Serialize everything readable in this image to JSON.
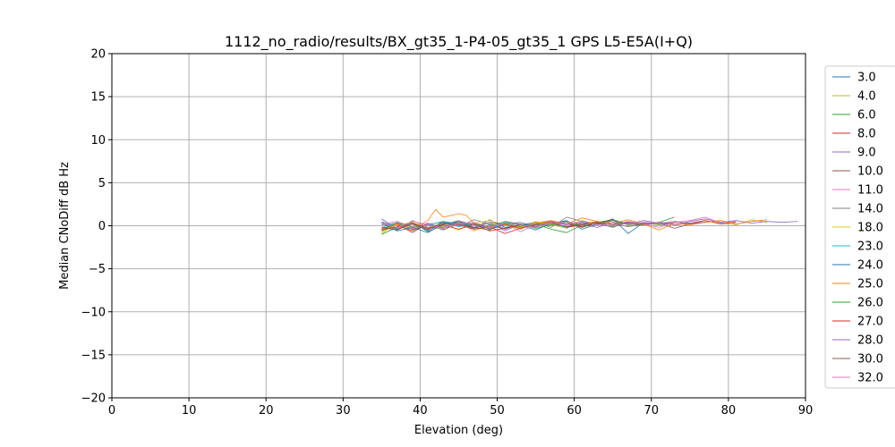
{
  "chart_data": {
    "type": "line",
    "title": "1112_no_radio/results/BX_gt35_1-P4-05_gt35_1 GPS L5-E5A(I+Q)",
    "xlabel": "Elevation (deg)",
    "ylabel": "Median CNoDiff dB Hz",
    "xlim": [
      0,
      90
    ],
    "ylim": [
      -20,
      20
    ],
    "xticks": [
      "0",
      "10",
      "20",
      "30",
      "40",
      "50",
      "60",
      "70",
      "80",
      "90"
    ],
    "yticks": [
      "−20",
      "−15",
      "−10",
      "−5",
      "0",
      "5",
      "10",
      "15",
      "20"
    ],
    "grid": true,
    "legend_position": "right-outside",
    "series": [
      {
        "name": "3.0",
        "color": "#1f77b4",
        "x": [
          35,
          37,
          39,
          41,
          43,
          45,
          47,
          49,
          51,
          53,
          55,
          57,
          59,
          61,
          63,
          65,
          67,
          69,
          71,
          73
        ],
        "y": [
          0.8,
          -0.4,
          0.3,
          -0.6,
          0.5,
          0.2,
          -0.3,
          0.7,
          -0.2,
          0.1,
          -0.5,
          0.3,
          0.6,
          -0.4,
          0.2,
          0.8,
          -0.9,
          0.4,
          0.1,
          0.3
        ]
      },
      {
        "name": "4.0",
        "color": "#bcbd22",
        "x": [
          35,
          37,
          39,
          41,
          43,
          45,
          47,
          49,
          51,
          53,
          55,
          57,
          59,
          61,
          63,
          65,
          67,
          69,
          71,
          73,
          75,
          77,
          79,
          81,
          83,
          85
        ],
        "y": [
          -0.9,
          0.3,
          -0.5,
          0.2,
          -0.1,
          0.4,
          -0.6,
          0.1,
          0.3,
          -0.2,
          0.5,
          0.1,
          -0.3,
          0.6,
          0.2,
          -0.1,
          0.4,
          0.3,
          0.1,
          0.5,
          0.2,
          0.6,
          0.3,
          0.1,
          0.7,
          0.4
        ]
      },
      {
        "name": "6.0",
        "color": "#2ca02c",
        "x": [
          35,
          37,
          39,
          41,
          43,
          45,
          47,
          49,
          51,
          53,
          55,
          57,
          59,
          61,
          63,
          65,
          67,
          69,
          71,
          73
        ],
        "y": [
          -1.0,
          -0.2,
          0.4,
          -0.7,
          0.1,
          0.6,
          -0.2,
          -0.5,
          0.3,
          -0.1,
          0.2,
          -0.4,
          -0.8,
          0.1,
          0.3,
          -0.2,
          0.5,
          0.2,
          0.4,
          1.0
        ]
      },
      {
        "name": "8.0",
        "color": "#d62728",
        "x": [
          35,
          37,
          39,
          41,
          43,
          45,
          47,
          49,
          51,
          53,
          55,
          57,
          59,
          61,
          63,
          65,
          67,
          69,
          71,
          73,
          75,
          77,
          79,
          81
        ],
        "y": [
          -0.5,
          0.2,
          -0.8,
          0.3,
          -0.3,
          0.1,
          -0.4,
          -0.1,
          -0.9,
          -0.3,
          0.2,
          0.4,
          -0.2,
          0.1,
          0.5,
          0.3,
          -0.1,
          0.2,
          0.4,
          0.1,
          0.3,
          0.6,
          0.2,
          0.4
        ]
      },
      {
        "name": "9.0",
        "color": "#9467bd",
        "x": [
          35,
          37,
          39,
          41,
          43,
          45,
          47,
          49,
          51,
          53,
          55,
          57,
          59,
          61,
          63,
          65,
          67,
          69,
          71,
          73,
          75,
          77,
          79,
          81,
          83,
          85,
          87,
          89
        ],
        "y": [
          0.5,
          -0.3,
          0.2,
          -0.5,
          0.1,
          0.3,
          -0.2,
          0.4,
          -0.6,
          0.2,
          -0.1,
          0.3,
          0.5,
          0.1,
          -0.2,
          0.4,
          0.2,
          0.6,
          0.3,
          0.1,
          0.5,
          0.8,
          0.4,
          0.6,
          0.3,
          0.5,
          0.4,
          0.5
        ]
      },
      {
        "name": "10.0",
        "color": "#8c564b",
        "x": [
          35,
          37,
          39,
          41,
          43,
          45,
          47,
          49,
          51,
          53,
          55,
          57,
          59,
          61,
          63,
          65,
          67,
          69,
          71,
          73,
          75,
          77,
          79
        ],
        "y": [
          -0.3,
          0.1,
          -0.6,
          0.2,
          0.4,
          -0.1,
          0.3,
          -0.4,
          0.1,
          -0.2,
          0.3,
          0.5,
          0.2,
          -0.1,
          0.4,
          0.7,
          0.2,
          0.1,
          0.3,
          -0.3,
          0.2,
          0.4,
          0.6
        ]
      },
      {
        "name": "11.0",
        "color": "#e377c2",
        "x": [
          35,
          37,
          39,
          41,
          43,
          45,
          47,
          49,
          51,
          53,
          55,
          57,
          59,
          61,
          63,
          65,
          67,
          69,
          71,
          73,
          75,
          77,
          79,
          81
        ],
        "y": [
          0.2,
          0.5,
          -0.1,
          0.3,
          -0.4,
          0.6,
          0.1,
          -0.2,
          0.3,
          -0.7,
          0.1,
          0.4,
          0.2,
          -0.1,
          0.3,
          0.1,
          0.5,
          0.2,
          -0.2,
          0.4,
          0.6,
          1.0,
          0.3,
          0.5
        ]
      },
      {
        "name": "14.0",
        "color": "#7f7f7f",
        "x": [
          35,
          37,
          39,
          41,
          43,
          45,
          47,
          49,
          51,
          53,
          55,
          57,
          59,
          61,
          63,
          65,
          67,
          69,
          71,
          73
        ],
        "y": [
          0.4,
          -0.5,
          0.6,
          -0.2,
          0.3,
          -0.1,
          0.7,
          0.2,
          -0.3,
          0.1,
          0.4,
          -0.2,
          1.0,
          0.5,
          0.1,
          0.3,
          -0.1,
          0.2,
          0.4,
          0.3
        ]
      },
      {
        "name": "18.0",
        "color": "#e8c51a",
        "x": [
          35,
          37,
          39,
          41,
          43,
          45,
          47,
          49,
          51,
          53,
          55,
          57,
          59,
          61,
          63,
          65,
          67,
          69
        ],
        "y": [
          -0.7,
          0.1,
          0.4,
          -0.3,
          0.2,
          -0.5,
          0.3,
          0.6,
          0.1,
          -0.2,
          0.4,
          0.2,
          -0.1,
          0.3,
          0.5,
          0.1,
          0.3,
          0.2
        ]
      },
      {
        "name": "23.0",
        "color": "#17becf",
        "x": [
          35,
          37,
          39,
          41,
          43,
          45,
          47,
          49,
          51,
          53,
          55
        ],
        "y": [
          -0.2,
          0.3,
          -0.4,
          0.1,
          0.5,
          -0.1,
          0.2,
          -0.3,
          0.4,
          0.1,
          0.2
        ]
      },
      {
        "name": "24.0",
        "color": "#1f77b4",
        "x": [
          35,
          37,
          39,
          41,
          43,
          45,
          47,
          49,
          51,
          53,
          55,
          57,
          59,
          61,
          63,
          65,
          67
        ],
        "y": [
          0.3,
          -0.6,
          -0.2,
          -0.8,
          0.2,
          0.5,
          -0.3,
          0.1,
          -0.4,
          0.2,
          -0.1,
          0.3,
          -0.2,
          0.4,
          0.1,
          0.6,
          0.2
        ]
      },
      {
        "name": "25.0",
        "color": "#ff7f0e",
        "x": [
          35,
          37,
          39,
          41,
          42,
          43,
          45,
          46,
          47,
          49,
          51,
          53,
          55,
          57,
          59,
          61,
          63,
          65,
          67,
          69,
          71,
          73,
          75,
          77,
          79,
          81,
          83,
          85
        ],
        "y": [
          -0.4,
          0.2,
          -0.3,
          0.6,
          1.9,
          1.0,
          1.4,
          1.2,
          0.3,
          -0.2,
          0.1,
          -0.4,
          0.3,
          0.6,
          0.2,
          0.9,
          0.5,
          0.3,
          0.7,
          0.2,
          -0.5,
          0.3,
          0.1,
          0.4,
          0.6,
          0.2,
          0.5,
          0.7
        ]
      },
      {
        "name": "26.0",
        "color": "#2ca02c",
        "x": [
          35,
          37,
          39,
          41,
          43,
          45,
          47,
          49,
          51,
          53,
          55,
          57,
          59,
          61,
          63,
          65,
          67,
          69,
          71
        ],
        "y": [
          -0.6,
          0.4,
          -0.2,
          0.1,
          -0.5,
          0.3,
          0.2,
          -0.1,
          0.5,
          0.2,
          -0.3,
          0.1,
          0.4,
          -0.2,
          0.3,
          0.6,
          0.1,
          0.3,
          0.2
        ]
      },
      {
        "name": "27.0",
        "color": "#d62728",
        "x": [
          35,
          37,
          39,
          41,
          43,
          45,
          47,
          49,
          51,
          53,
          55,
          57,
          59,
          61,
          63,
          65,
          67
        ],
        "y": [
          -0.2,
          -0.5,
          0.3,
          -0.3,
          0.1,
          -0.4,
          0.2,
          -0.6,
          -0.3,
          0.1,
          -0.2,
          0.4,
          0.2,
          -0.1,
          0.3,
          0.1,
          0.4
        ]
      },
      {
        "name": "28.0",
        "color": "#9467bd",
        "x": [
          35,
          37,
          39,
          41,
          43,
          45,
          47,
          49,
          51,
          53,
          55,
          57,
          59,
          61,
          63,
          65,
          67,
          69,
          71,
          73,
          75,
          77
        ],
        "y": [
          0.1,
          0.3,
          -0.4,
          0.2,
          -0.2,
          0.5,
          0.1,
          -0.3,
          0.2,
          0.4,
          -0.1,
          0.3,
          0.1,
          0.5,
          0.2,
          -0.1,
          0.4,
          0.3,
          0.2,
          0.5,
          0.3,
          0.4
        ]
      },
      {
        "name": "30.0",
        "color": "#8c564b",
        "x": [
          35,
          37,
          39,
          41,
          43,
          45,
          47,
          49,
          51,
          53,
          55,
          57,
          59,
          61,
          63,
          65,
          67,
          69
        ],
        "y": [
          -0.5,
          -0.1,
          0.2,
          -0.4,
          0.3,
          0.1,
          -0.2,
          0.4,
          0.2,
          -0.3,
          0.1,
          0.3,
          -0.1,
          0.2,
          0.4,
          0.1,
          0.3,
          0.2
        ]
      },
      {
        "name": "32.0",
        "color": "#e377c2",
        "x": [
          35,
          37,
          39,
          41,
          43,
          45,
          47,
          49,
          51,
          53,
          55,
          57,
          59,
          61,
          63,
          65,
          67,
          69,
          71,
          73
        ],
        "y": [
          0.3,
          -0.2,
          0.5,
          0.1,
          -0.3,
          0.2,
          0.4,
          -0.1,
          0.3,
          0.1,
          -0.2,
          0.4,
          0.2,
          0.5,
          0.1,
          0.3,
          0.2,
          0.4,
          0.3,
          0.5
        ]
      }
    ]
  }
}
